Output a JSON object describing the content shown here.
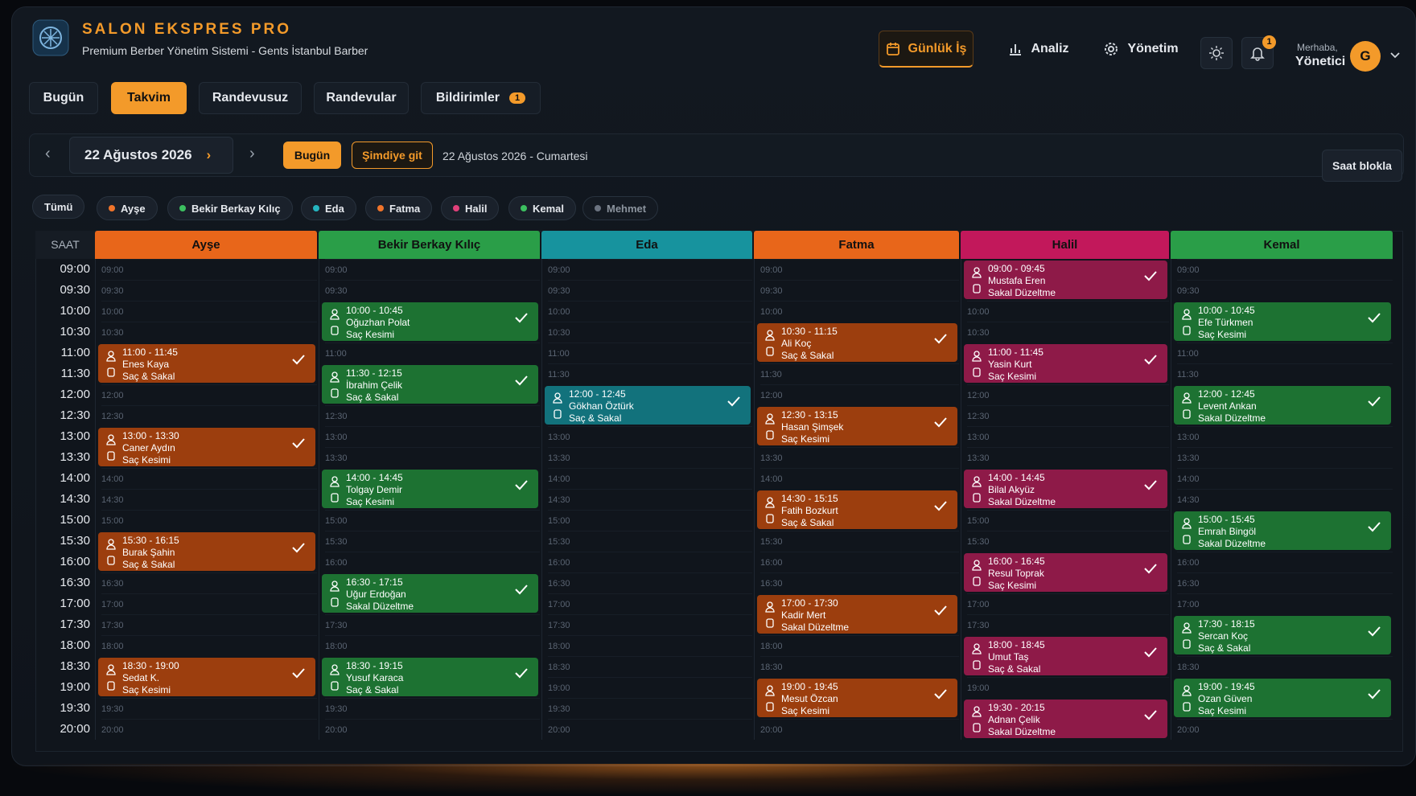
{
  "header": {
    "brand": "SALON EKSPRES PRO",
    "subtitle": "Premium Berber Yönetim Sistemi - Gents İstanbul Barber",
    "nav": [
      "Günlük İş",
      "Analiz",
      "Yönetim"
    ],
    "notification_count": "1",
    "greeting": "Merhaba,",
    "user": "Yönetici",
    "avatar": "G"
  },
  "tabs": {
    "items": [
      "Bugün",
      "Takvim",
      "Randevusuz",
      "Randevular",
      "Bildirimler"
    ],
    "active": 1,
    "badge": "1"
  },
  "toolbar": {
    "date": "22 Ağustos 2026",
    "today_button": "Bugün",
    "now_button": "Şimdiye git",
    "date_full": "22 Ağustos 2026 - Cumartesi",
    "block_button": "Saat blokla"
  },
  "filters": {
    "all": "Tümü",
    "items": [
      {
        "name": "Ayşe",
        "color": "#f0742a"
      },
      {
        "name": "Bekir Berkay Kılıç",
        "color": "#3cc060"
      },
      {
        "name": "Eda",
        "color": "#25b5c0"
      },
      {
        "name": "Fatma",
        "color": "#f0742a"
      },
      {
        "name": "Halil",
        "color": "#e0407a"
      },
      {
        "name": "Kemal",
        "color": "#3cc060"
      },
      {
        "name": "Mehmet",
        "color": "#6b7380",
        "inactive": true
      }
    ]
  },
  "calendar": {
    "time_header": "SAAT",
    "time_slots": [
      "09:00",
      "09:30",
      "10:00",
      "10:30",
      "11:00",
      "11:30",
      "12:00",
      "12:30",
      "13:00",
      "13:30",
      "14:00",
      "14:30",
      "15:00",
      "15:30",
      "16:00",
      "16:30",
      "17:00",
      "17:30",
      "18:00",
      "18:30",
      "19:00",
      "19:30",
      "20:00"
    ],
    "columns": [
      {
        "name": "Ayşe",
        "color": "#e8661a",
        "appointment_color": "#9c3e0e",
        "appointments": [
          {
            "time": "11:00 - 11:45",
            "customer": "Enes Kaya",
            "service": "Saç & Sakal"
          },
          {
            "time": "13:00 - 13:30",
            "customer": "Caner Aydın",
            "service": "Saç Kesimi"
          },
          {
            "time": "15:30 - 16:15",
            "customer": "Burak Şahin",
            "service": "Saç & Sakal"
          },
          {
            "time": "18:30 - 19:00",
            "customer": "Sedat K.",
            "service": "Saç Kesimi"
          }
        ]
      },
      {
        "name": "Bekir Berkay Kılıç",
        "color": "#2a9e48",
        "appointment_color": "#1d7232",
        "appointments": [
          {
            "time": "10:00 - 10:45",
            "customer": "Oğuzhan Polat",
            "service": "Saç Kesimi"
          },
          {
            "time": "11:30 - 12:15",
            "customer": "İbrahim Çelik",
            "service": "Saç & Sakal"
          },
          {
            "time": "14:00 - 14:45",
            "customer": "Tolgay Demir",
            "service": "Saç Kesimi"
          },
          {
            "time": "16:30 - 17:15",
            "customer": "Uğur Erdoğan",
            "service": "Sakal Düzeltme"
          },
          {
            "time": "18:30 - 19:15",
            "customer": "Yusuf Karaca",
            "service": "Saç & Sakal"
          }
        ]
      },
      {
        "name": "Eda",
        "color": "#17939e",
        "appointment_color": "#12727c",
        "appointments": [
          {
            "time": "12:00 - 12:45",
            "customer": "Gökhan Öztürk",
            "service": "Saç & Sakal"
          }
        ]
      },
      {
        "name": "Fatma",
        "color": "#e8661a",
        "appointment_color": "#9c3e0e",
        "appointments": [
          {
            "time": "10:30 - 11:15",
            "customer": "Ali Koç",
            "service": "Saç & Sakal"
          },
          {
            "time": "12:30 - 13:15",
            "customer": "Hasan Şimşek",
            "service": "Saç Kesimi"
          },
          {
            "time": "14:30 - 15:15",
            "customer": "Fatih Bozkurt",
            "service": "Saç & Sakal"
          },
          {
            "time": "17:00 - 17:30",
            "customer": "Kadir Mert",
            "service": "Sakal Düzeltme"
          },
          {
            "time": "19:00 - 19:45",
            "customer": "Mesut Özcan",
            "service": "Saç Kesimi"
          }
        ]
      },
      {
        "name": "Halil",
        "color": "#c2185b",
        "appointment_color": "#8e1a48",
        "appointments": [
          {
            "time": "09:00 - 09:45",
            "customer": "Mustafa Eren",
            "service": "Sakal Düzeltme"
          },
          {
            "time": "11:00 - 11:45",
            "customer": "Yasin Kurt",
            "service": "Saç Kesimi"
          },
          {
            "time": "14:00 - 14:45",
            "customer": "Bilal Akyüz",
            "service": "Sakal Düzeltme"
          },
          {
            "time": "16:00 - 16:45",
            "customer": "Resul Toprak",
            "service": "Saç Kesimi"
          },
          {
            "time": "18:00 - 18:45",
            "customer": "Umut Taş",
            "service": "Saç & Sakal"
          },
          {
            "time": "19:30 - 20:15",
            "customer": "Adnan Çelik",
            "service": "Sakal Düzeltme"
          }
        ]
      },
      {
        "name": "Kemal",
        "color": "#2a9e48",
        "appointment_color": "#1d7232",
        "appointments": [
          {
            "time": "10:00 - 10:45",
            "customer": "Efe Türkmen",
            "service": "Saç Kesimi"
          },
          {
            "time": "12:00 - 12:45",
            "customer": "Levent Ankan",
            "service": "Sakal Düzeltme"
          },
          {
            "time": "15:00 - 15:45",
            "customer": "Emrah Bingöl",
            "service": "Sakal Düzeltme"
          },
          {
            "time": "17:30 - 18:15",
            "customer": "Sercan Koç",
            "service": "Saç & Sakal"
          },
          {
            "time": "19:00 - 19:45",
            "customer": "Ozan Güven",
            "service": "Saç Kesimi"
          }
        ]
      }
    ]
  }
}
